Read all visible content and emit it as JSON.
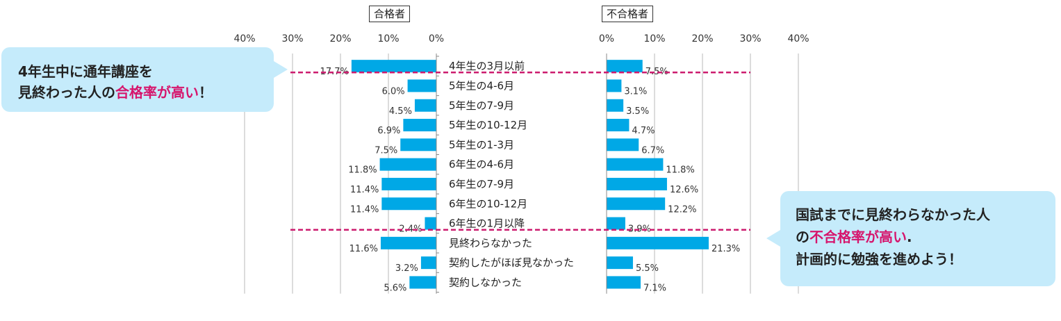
{
  "chart_data": {
    "type": "bar",
    "categories": [
      "4年生の3月以前",
      "5年生の4-6月",
      "5年生の7-9月",
      "5年生の10-12月",
      "5年生の1-3月",
      "6年生の4-6月",
      "6年生の7-9月",
      "6年生の10-12月",
      "6年生の1月以降",
      "見終わらなかった",
      "契約したがほぼ見なかった",
      "契約しなかった"
    ],
    "series": [
      {
        "name": "合格者",
        "values": [
          17.7,
          6.0,
          4.5,
          6.9,
          7.5,
          11.8,
          11.4,
          11.4,
          2.4,
          11.6,
          3.2,
          5.6
        ],
        "labels": [
          "17.7%",
          "6.0%",
          "4.5%",
          "6.9%",
          "7.5%",
          "11.8%",
          "11.4%",
          "11.4%",
          "2.4%",
          "11.6%",
          "3.2%",
          "5.6%"
        ]
      },
      {
        "name": "不合格者",
        "values": [
          7.5,
          3.1,
          3.5,
          4.7,
          6.7,
          11.8,
          12.6,
          12.2,
          3.9,
          21.3,
          5.5,
          7.1
        ],
        "labels": [
          "7.5%",
          "3.1%",
          "3.5%",
          "4.7%",
          "6.7%",
          "11.8%",
          "12.6%",
          "12.2%",
          "3.9%",
          "21.3%",
          "5.5%",
          "7.1%"
        ]
      }
    ],
    "left_axis_ticks": [
      "40%",
      "30%",
      "20%",
      "10%",
      "0%"
    ],
    "right_axis_ticks": [
      "0%",
      "10%",
      "20%",
      "30%",
      "40%"
    ],
    "xlim": [
      0,
      40
    ],
    "grid": true,
    "bar_color": "#00a8e6",
    "divider_color": "#cc1b6e"
  },
  "labels": {
    "pass": "合格者",
    "fail": "不合格者"
  },
  "callout_left": {
    "line1": "4年生中に通年講座を",
    "line2_pre": "見終わった人の",
    "line2_hl": "合格率が高い",
    "line2_post": "！"
  },
  "callout_right": {
    "line1": "国試までに見終わらなかった人",
    "line2_pre": "の",
    "line2_hl": "不合格率が高い",
    "line2_post": ".",
    "line3": "計画的に勉強を進めよう！"
  },
  "colors": {
    "accent": "#d6156c",
    "callout_bg": "#c5ebfb"
  }
}
